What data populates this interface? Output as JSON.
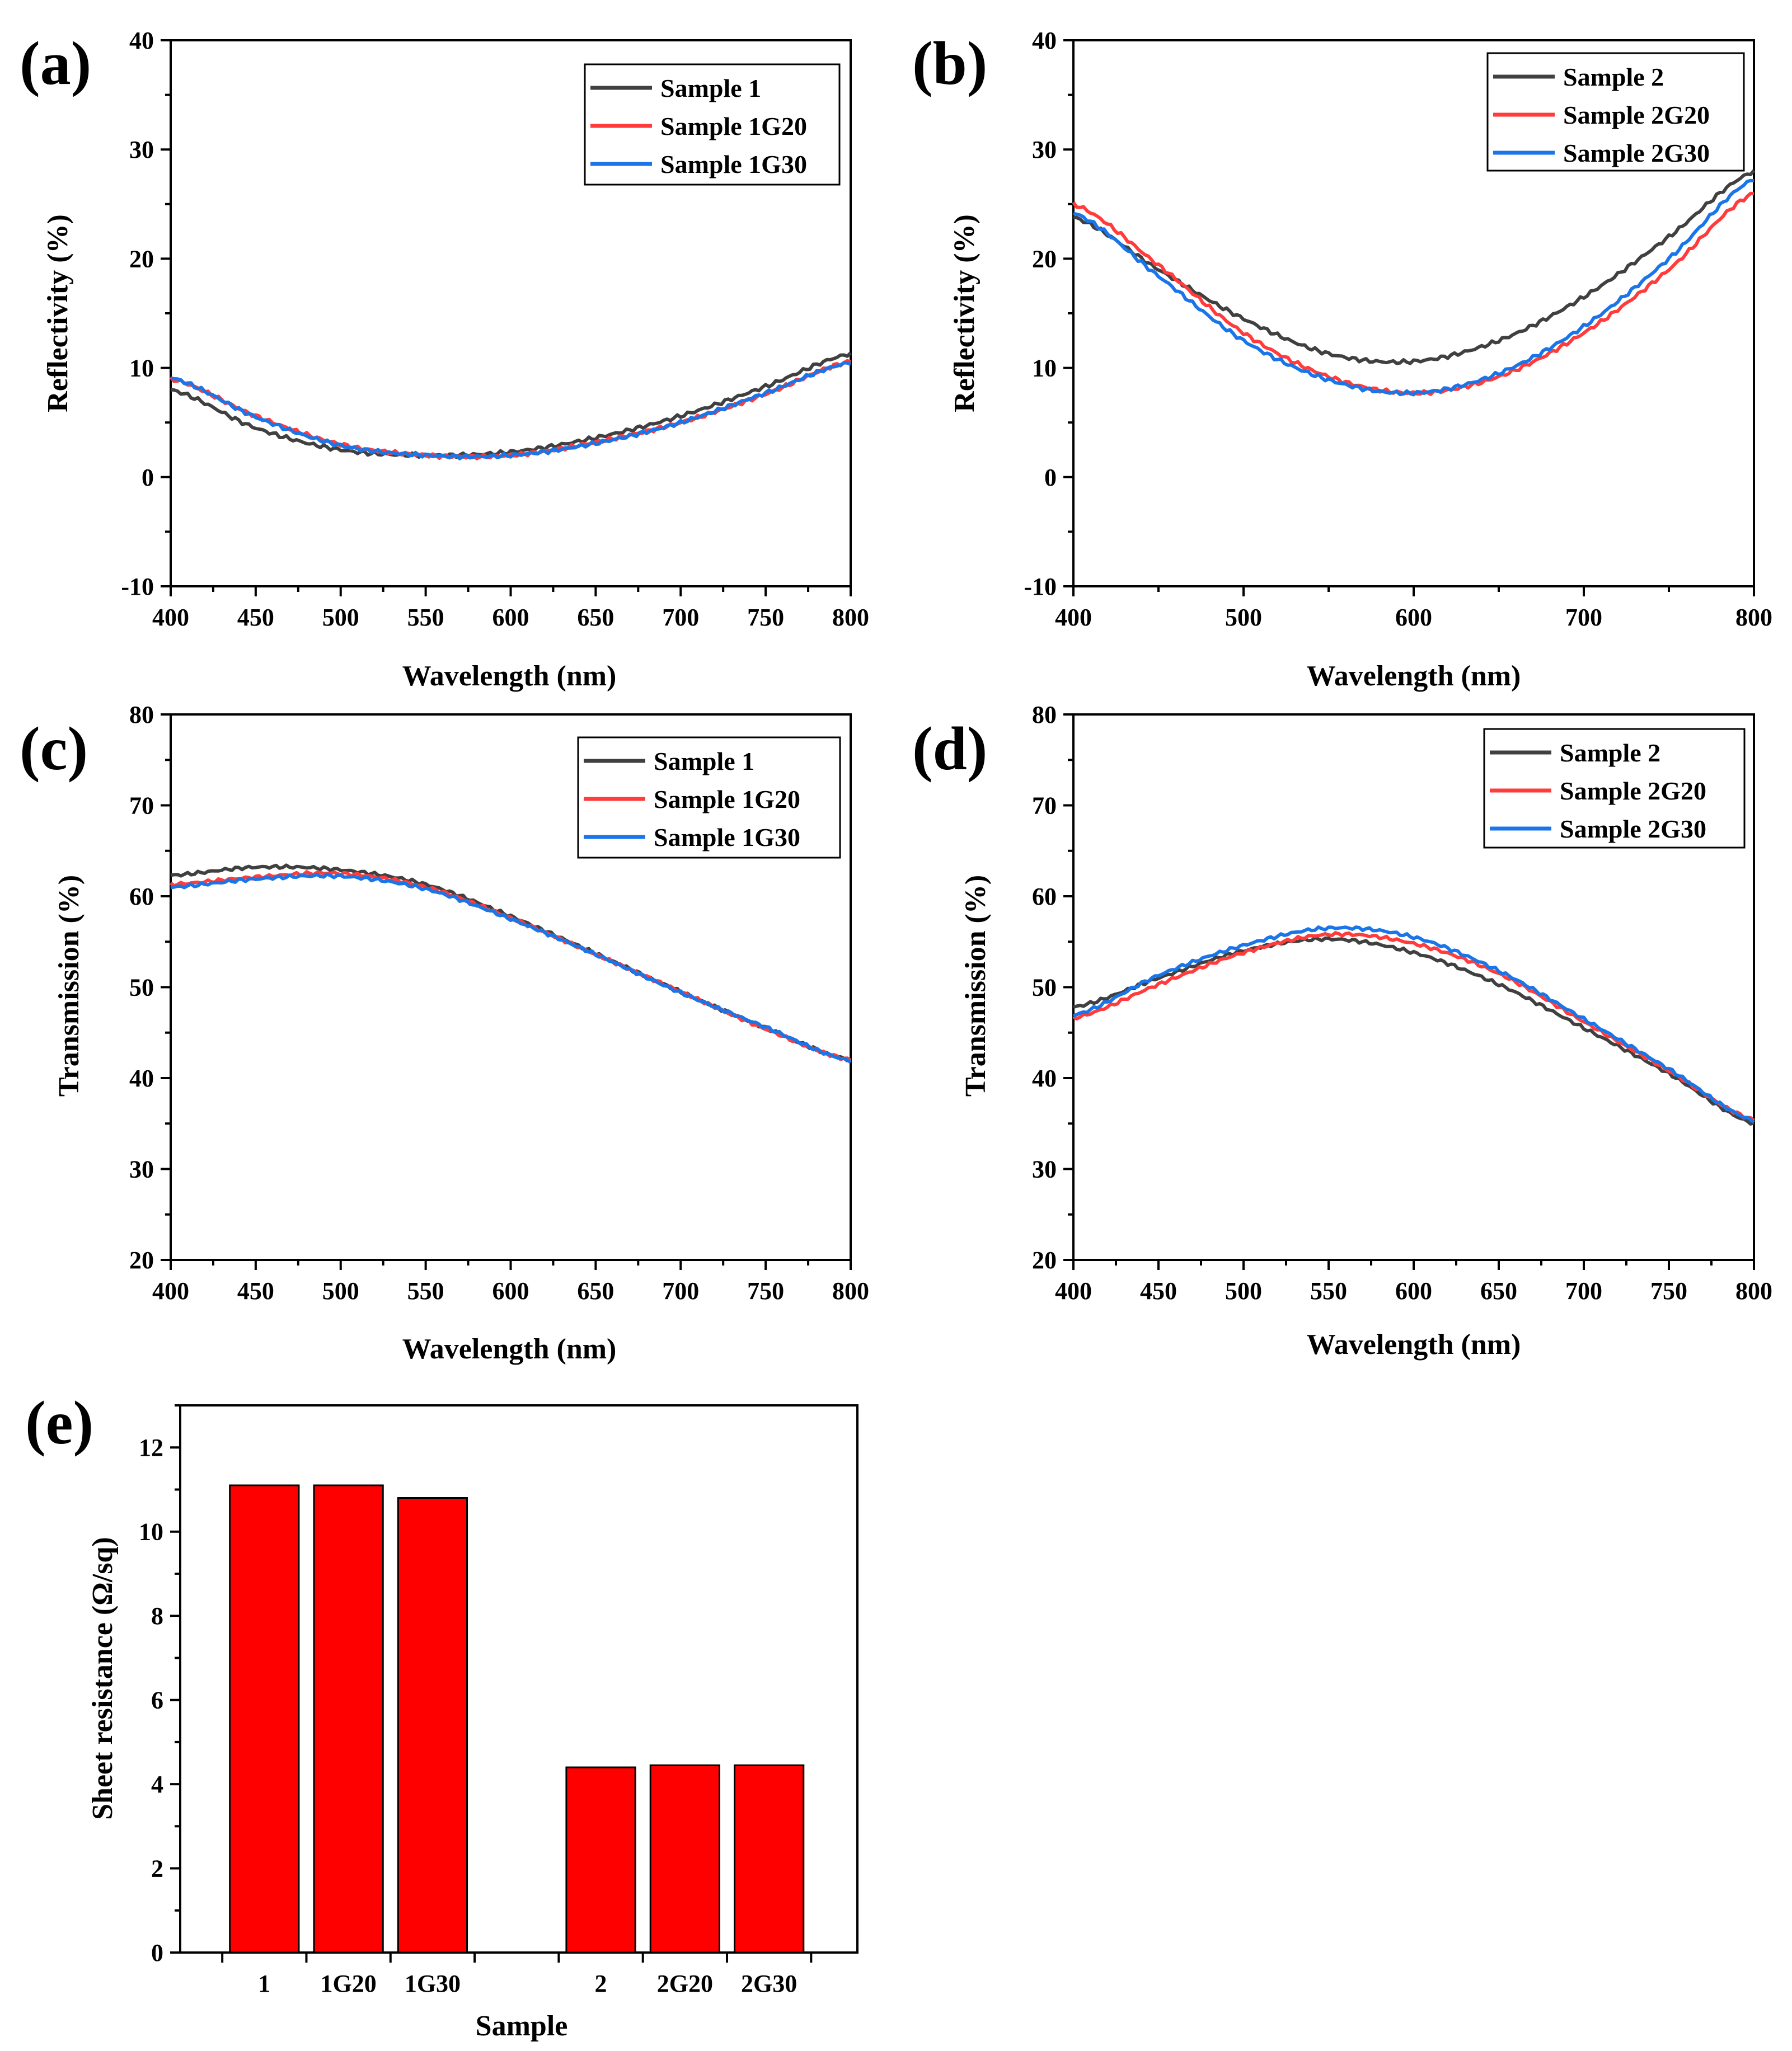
{
  "chart_data": [
    {
      "id": "a",
      "type": "line",
      "panel_label": "(a)",
      "xlabel": "Wavelength (nm)",
      "ylabel": "Reflectivity (%)",
      "xlim": [
        400,
        800
      ],
      "ylim": [
        -10,
        40
      ],
      "xticks": [
        "400",
        "450",
        "500",
        "550",
        "600",
        "650",
        "700",
        "750",
        "800"
      ],
      "yticks": [
        "-10",
        "0",
        "10",
        "20",
        "30",
        "40"
      ],
      "legend_position": "top-right",
      "x": [
        400,
        450,
        500,
        550,
        600,
        650,
        700,
        750,
        800
      ],
      "series": [
        {
          "name": "Sample 1",
          "color": "#404040",
          "values": [
            8.0,
            4.5,
            2.5,
            2.0,
            2.3,
            3.6,
            5.6,
            8.3,
            11.3
          ]
        },
        {
          "name": "Sample 1G20",
          "color": "#ff3b3b",
          "values": [
            9.0,
            5.6,
            3.0,
            2.0,
            2.0,
            3.2,
            5.0,
            7.6,
            10.6
          ]
        },
        {
          "name": "Sample 1G30",
          "color": "#1a75e8",
          "values": [
            9.1,
            5.5,
            2.9,
            2.0,
            2.0,
            3.1,
            5.0,
            7.7,
            10.5
          ]
        }
      ]
    },
    {
      "id": "b",
      "type": "line",
      "panel_label": "(b)",
      "xlabel": "Wavelength (nm)",
      "ylabel": "Reflectivity (%)",
      "xlim": [
        400,
        800
      ],
      "ylim": [
        -10,
        40
      ],
      "xticks": [
        "400",
        "500",
        "600",
        "700",
        "800"
      ],
      "yticks": [
        "-10",
        "0",
        "10",
        "20",
        "30",
        "40"
      ],
      "legend_position": "top-right",
      "x": [
        400,
        450,
        500,
        550,
        600,
        650,
        700,
        750,
        800
      ],
      "series": [
        {
          "name": "Sample 2",
          "color": "#404040",
          "values": [
            23.8,
            19.0,
            14.5,
            11.3,
            10.6,
            12.5,
            16.5,
            22.0,
            28.0
          ]
        },
        {
          "name": "Sample 2G20",
          "color": "#ff3b3b",
          "values": [
            25.0,
            19.4,
            13.2,
            9.2,
            7.7,
            9.2,
            13.2,
            19.0,
            26.0
          ]
        },
        {
          "name": "Sample 2G30",
          "color": "#1a75e8",
          "values": [
            24.2,
            18.4,
            12.5,
            8.9,
            7.7,
            9.5,
            13.8,
            20.0,
            27.3
          ]
        }
      ]
    },
    {
      "id": "c",
      "type": "line",
      "panel_label": "(c)",
      "xlabel": "Wavelength (nm)",
      "ylabel": "Transmission (%)",
      "xlim": [
        400,
        800
      ],
      "ylim": [
        20,
        80
      ],
      "xticks": [
        "400",
        "450",
        "500",
        "550",
        "600",
        "650",
        "700",
        "750",
        "800"
      ],
      "yticks": [
        "20",
        "30",
        "40",
        "50",
        "60",
        "70",
        "80"
      ],
      "legend_position": "top-right",
      "x": [
        400,
        450,
        500,
        550,
        600,
        650,
        700,
        750,
        800
      ],
      "series": [
        {
          "name": "Sample 1",
          "color": "#404040",
          "values": [
            62.3,
            63.2,
            62.9,
            61.3,
            57.8,
            53.7,
            49.5,
            45.5,
            42.0
          ]
        },
        {
          "name": "Sample 1G20",
          "color": "#ff3b3b",
          "values": [
            61.3,
            62.1,
            62.5,
            61.0,
            57.6,
            53.6,
            49.5,
            45.4,
            42.0
          ]
        },
        {
          "name": "Sample 1G30",
          "color": "#1a75e8",
          "values": [
            61.0,
            61.9,
            62.2,
            60.8,
            57.5,
            53.6,
            49.4,
            45.6,
            41.9
          ]
        }
      ]
    },
    {
      "id": "d",
      "type": "line",
      "panel_label": "(d)",
      "xlabel": "Wavelength (nm)",
      "ylabel": "Transmission (%)",
      "xlim": [
        400,
        800
      ],
      "ylim": [
        20,
        80
      ],
      "xticks": [
        "400",
        "450",
        "500",
        "550",
        "600",
        "650",
        "700",
        "750",
        "800"
      ],
      "yticks": [
        "20",
        "30",
        "40",
        "50",
        "60",
        "70",
        "80"
      ],
      "legend_position": "top-right",
      "x": [
        400,
        450,
        500,
        550,
        600,
        650,
        700,
        750,
        800
      ],
      "series": [
        {
          "name": "Sample 2",
          "color": "#404040",
          "values": [
            47.8,
            51.0,
            54.0,
            55.3,
            53.8,
            50.3,
            45.5,
            40.5,
            35.0
          ]
        },
        {
          "name": "Sample 2G20",
          "color": "#ff3b3b",
          "values": [
            46.6,
            50.3,
            53.8,
            55.8,
            54.8,
            51.5,
            46.2,
            40.8,
            35.4
          ]
        },
        {
          "name": "Sample 2G30",
          "color": "#1a75e8",
          "values": [
            46.9,
            51.3,
            54.6,
            56.5,
            55.5,
            51.8,
            46.5,
            41.0,
            35.3
          ]
        }
      ]
    },
    {
      "id": "e",
      "type": "bar",
      "panel_label": "(e)",
      "xlabel": "Sample",
      "ylabel": "Sheet resistance (Ω/sq)",
      "ylim": [
        0,
        13
      ],
      "yticks": [
        "0",
        "2",
        "4",
        "6",
        "8",
        "10",
        "12"
      ],
      "categories": [
        "1",
        "1G20",
        "1G30",
        "2",
        "2G20",
        "2G30"
      ],
      "values": [
        11.1,
        11.1,
        10.8,
        4.4,
        4.45,
        4.45
      ],
      "bar_color": "#ff0000"
    }
  ]
}
